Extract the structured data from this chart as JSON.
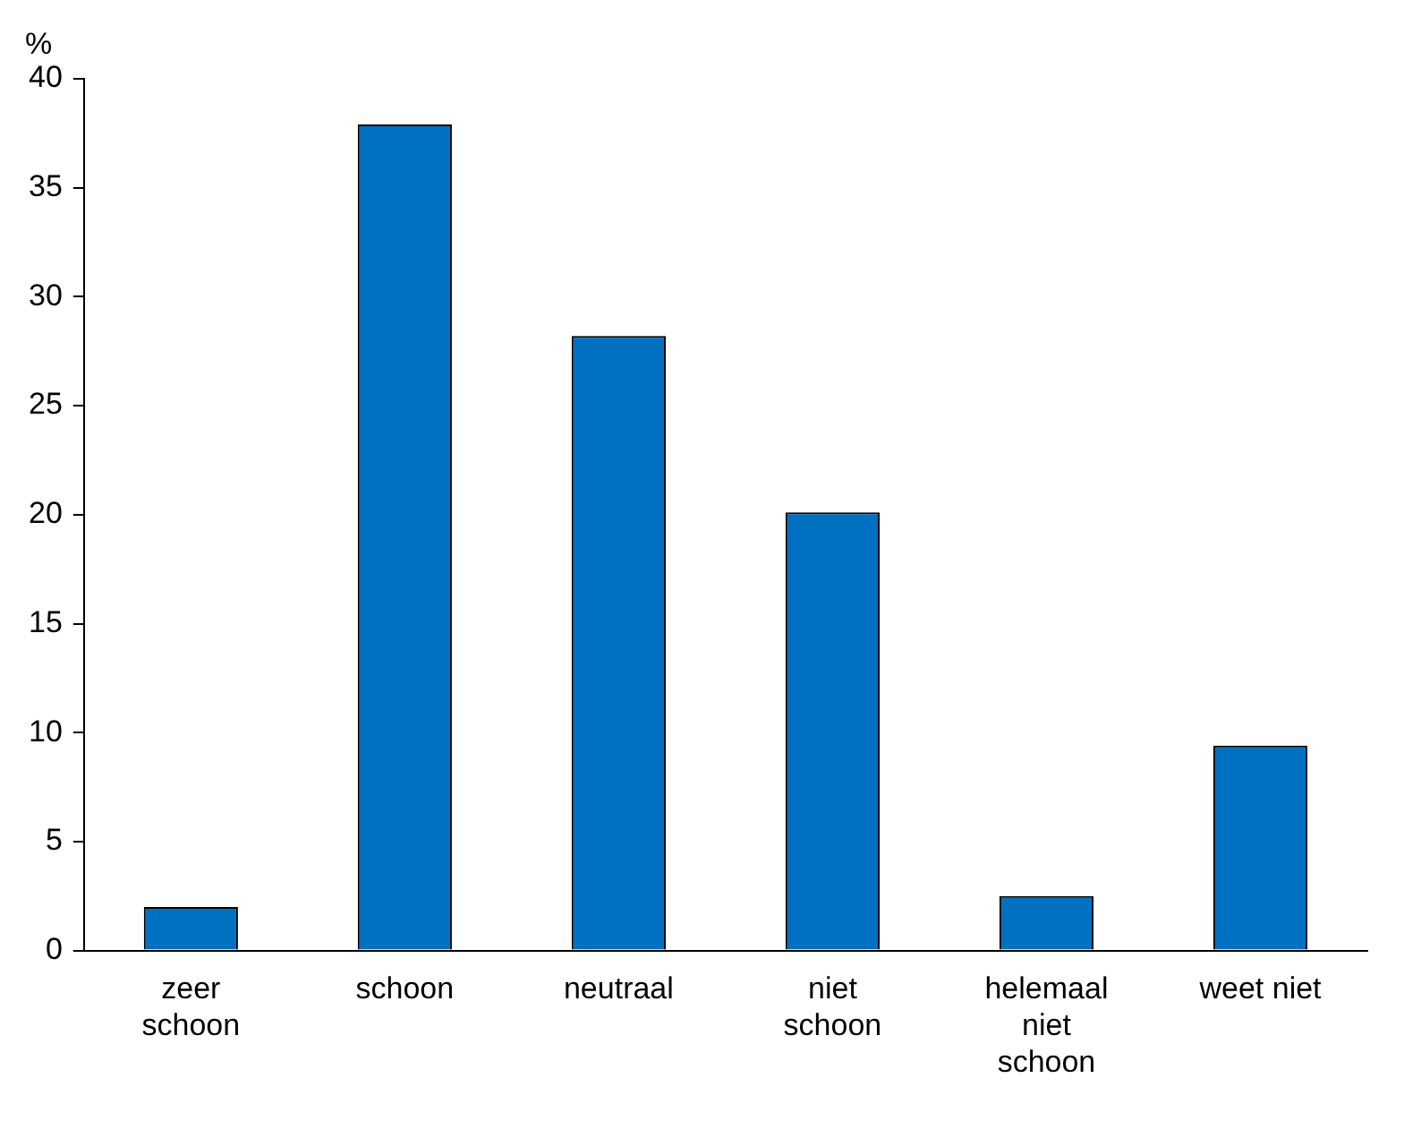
{
  "chart_data": {
    "type": "bar",
    "ylabel": "%",
    "categories": [
      "zeer schoon",
      "schoon",
      "neutraal",
      "niet schoon",
      "helemaal niet schoon",
      "weet niet"
    ],
    "values": [
      2.0,
      37.9,
      28.2,
      20.1,
      2.5,
      9.4
    ],
    "color": "#0070c0",
    "ylim": [
      0,
      40
    ],
    "yticks": [
      0,
      5,
      10,
      15,
      20,
      25,
      30,
      35,
      40
    ],
    "grid": false,
    "legend": false
  }
}
